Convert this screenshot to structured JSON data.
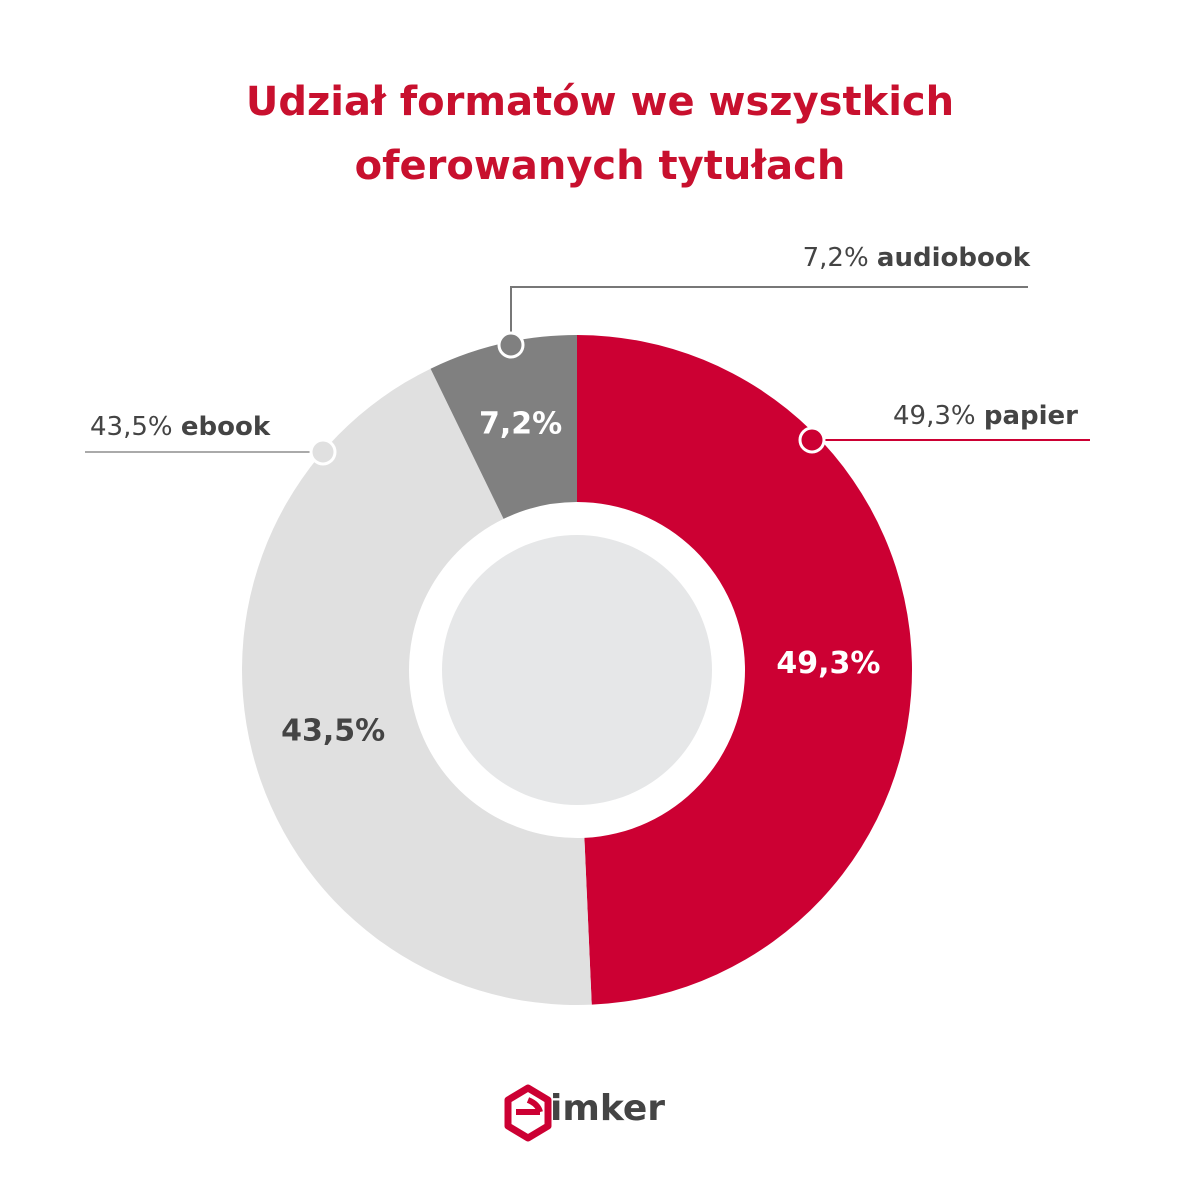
{
  "chart_data": {
    "type": "donut",
    "title": "Udział formatów we wszystkich oferowanych tytułach",
    "categories": [
      "papier",
      "ebook",
      "audiobook"
    ],
    "values": [
      49.3,
      43.5,
      7.2
    ],
    "value_labels": [
      "49,3%",
      "43,5%",
      "7,2%"
    ],
    "colors": [
      "#cc0033",
      "#e0e0e0",
      "#808080"
    ]
  },
  "logo": "imker"
}
